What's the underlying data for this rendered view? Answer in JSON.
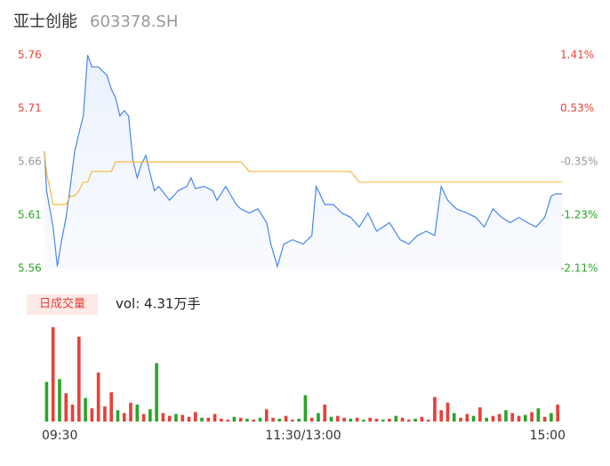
{
  "header": {
    "name": "亚士创能",
    "code": "603378.SH"
  },
  "chart_data": [
    {
      "type": "line",
      "x": [
        0,
        1,
        4,
        6,
        8,
        10,
        12,
        14,
        16,
        18,
        20,
        22,
        25,
        29,
        31,
        33,
        35,
        37,
        39,
        41,
        43,
        45,
        47,
        49,
        51,
        53,
        58,
        62,
        66,
        68,
        70,
        74,
        78,
        80,
        84,
        89,
        91,
        95,
        99,
        103,
        105,
        108,
        111,
        115,
        120,
        124,
        126,
        130,
        134,
        138,
        142,
        146,
        150,
        154,
        160,
        165,
        169,
        173,
        177,
        181,
        184,
        187,
        191,
        196,
        200,
        204,
        208,
        212,
        216,
        220,
        224,
        228,
        232,
        235,
        237,
        240
      ],
      "series": [
        {
          "color": "#4a86e8",
          "values": [
            5.67,
            5.633,
            5.599,
            5.562,
            5.587,
            5.608,
            5.637,
            5.67,
            5.687,
            5.703,
            5.76,
            5.749,
            5.749,
            5.741,
            5.728,
            5.72,
            5.703,
            5.708,
            5.703,
            5.662,
            5.645,
            5.658,
            5.666,
            5.649,
            5.633,
            5.637,
            5.624,
            5.633,
            5.637,
            5.645,
            5.635,
            5.637,
            5.633,
            5.624,
            5.637,
            5.62,
            5.616,
            5.612,
            5.616,
            5.603,
            5.583,
            5.562,
            5.583,
            5.587,
            5.583,
            5.591,
            5.637,
            5.62,
            5.62,
            5.612,
            5.608,
            5.599,
            5.612,
            5.595,
            5.603,
            5.587,
            5.583,
            5.591,
            5.595,
            5.591,
            5.637,
            5.624,
            5.616,
            5.612,
            5.608,
            5.599,
            5.616,
            5.608,
            5.603,
            5.608,
            5.603,
            5.599,
            5.608,
            5.628,
            5.63,
            5.63
          ]
        },
        {
          "color": "#f5b942",
          "values": [
            5.67,
            5.65,
            5.62,
            5.62,
            5.62,
            5.62,
            5.628,
            5.628,
            5.633,
            5.641,
            5.641,
            5.651,
            5.651,
            5.651,
            5.651,
            5.66,
            5.66,
            5.66,
            5.66,
            5.66,
            5.66,
            5.66,
            5.66,
            5.66,
            5.66,
            5.66,
            5.66,
            5.66,
            5.66,
            5.66,
            5.66,
            5.66,
            5.66,
            5.66,
            5.66,
            5.66,
            5.66,
            5.651,
            5.651,
            5.651,
            5.651,
            5.651,
            5.651,
            5.651,
            5.651,
            5.651,
            5.651,
            5.651,
            5.651,
            5.651,
            5.651,
            5.641,
            5.641,
            5.641,
            5.641,
            5.641,
            5.641,
            5.641,
            5.641,
            5.641,
            5.641,
            5.641,
            5.641,
            5.641,
            5.641,
            5.641,
            5.641,
            5.641,
            5.641,
            5.641,
            5.641,
            5.641,
            5.641,
            5.641,
            5.641,
            5.641
          ]
        }
      ],
      "xlim": [
        0,
        240
      ],
      "ylim": [
        5.56,
        5.76
      ],
      "yticks": [
        5.76,
        5.71,
        5.66,
        5.61,
        5.56
      ],
      "y2lim": [
        -2.11,
        1.41
      ],
      "y2ticks": [
        {
          "value": 1.41,
          "label": "1.41%"
        },
        {
          "value": 0.53,
          "label": "0.53%"
        },
        {
          "value": -0.35,
          "label": "-0.35%"
        },
        {
          "value": -1.23,
          "label": "-1.23%"
        },
        {
          "value": -2.11,
          "label": "-2.11%"
        }
      ],
      "tick_colors": [
        "#e8403a",
        "#e8403a",
        "#999999",
        "#2aa52a",
        "#2aa52a"
      ]
    },
    {
      "type": "bar",
      "title": "日成交量",
      "subtitle": "vol: 4.31万手",
      "x": [
        1,
        4,
        7,
        10,
        13,
        16,
        19,
        22,
        25,
        28,
        31,
        34,
        37,
        40,
        43,
        46,
        49,
        52,
        55,
        58,
        61,
        64,
        67,
        70,
        73,
        76,
        79,
        82,
        85,
        88,
        91,
        94,
        97,
        100,
        103,
        106,
        109,
        112,
        115,
        118,
        121,
        124,
        127,
        130,
        133,
        136,
        139,
        142,
        145,
        148,
        151,
        154,
        157,
        160,
        163,
        166,
        169,
        172,
        175,
        178,
        181,
        184,
        187,
        190,
        193,
        196,
        199,
        202,
        205,
        208,
        211,
        214,
        217,
        220,
        223,
        226,
        229,
        232,
        235,
        238
      ],
      "values": [
        420,
        1000,
        450,
        300,
        180,
        900,
        250,
        140,
        520,
        160,
        310,
        120,
        90,
        200,
        180,
        80,
        130,
        620,
        90,
        60,
        80,
        70,
        50,
        100,
        40,
        40,
        80,
        30,
        20,
        50,
        40,
        30,
        20,
        40,
        130,
        40,
        30,
        60,
        20,
        30,
        280,
        40,
        90,
        180,
        50,
        60,
        40,
        30,
        40,
        20,
        40,
        30,
        20,
        30,
        60,
        40,
        20,
        30,
        50,
        20,
        260,
        120,
        200,
        90,
        40,
        80,
        60,
        150,
        40,
        60,
        80,
        120,
        90,
        60,
        70,
        100,
        140,
        50,
        90,
        180
      ],
      "colors": [
        "#2aa52a",
        "#e8403a",
        "#2aa52a",
        "#e8403a",
        "#e8403a",
        "#e8403a",
        "#2aa52a",
        "#e8403a",
        "#e8403a",
        "#e8403a",
        "#e8403a",
        "#2aa52a",
        "#e8403a",
        "#e8403a",
        "#2aa52a",
        "#e8403a",
        "#2aa52a",
        "#2aa52a",
        "#e8403a",
        "#e8403a",
        "#2aa52a",
        "#e8403a",
        "#e8403a",
        "#e8403a",
        "#2aa52a",
        "#e8403a",
        "#e8403a",
        "#e8403a",
        "#e8403a",
        "#2aa52a",
        "#e8403a",
        "#2aa52a",
        "#e8403a",
        "#2aa52a",
        "#e8403a",
        "#e8403a",
        "#2aa52a",
        "#e8403a",
        "#e8403a",
        "#2aa52a",
        "#2aa52a",
        "#e8403a",
        "#2aa52a",
        "#e8403a",
        "#2aa52a",
        "#e8403a",
        "#e8403a",
        "#2aa52a",
        "#e8403a",
        "#2aa52a",
        "#e8403a",
        "#e8403a",
        "#2aa52a",
        "#e8403a",
        "#2aa52a",
        "#e8403a",
        "#e8403a",
        "#2aa52a",
        "#e8403a",
        "#e8403a",
        "#e8403a",
        "#e8403a",
        "#e8403a",
        "#2aa52a",
        "#e8403a",
        "#e8403a",
        "#2aa52a",
        "#e8403a",
        "#2aa52a",
        "#e8403a",
        "#e8403a",
        "#2aa52a",
        "#e8403a",
        "#e8403a",
        "#2aa52a",
        "#e8403a",
        "#2aa52a",
        "#e8403a",
        "#2aa52a",
        "#e8403a"
      ],
      "xlim": [
        0,
        240
      ],
      "ylim": [
        0,
        1000
      ],
      "xticks": [
        {
          "value": 0,
          "label": "09:30"
        },
        {
          "value": 120,
          "label": "11:30/13:00"
        },
        {
          "value": 240,
          "label": "15:00"
        }
      ]
    }
  ]
}
